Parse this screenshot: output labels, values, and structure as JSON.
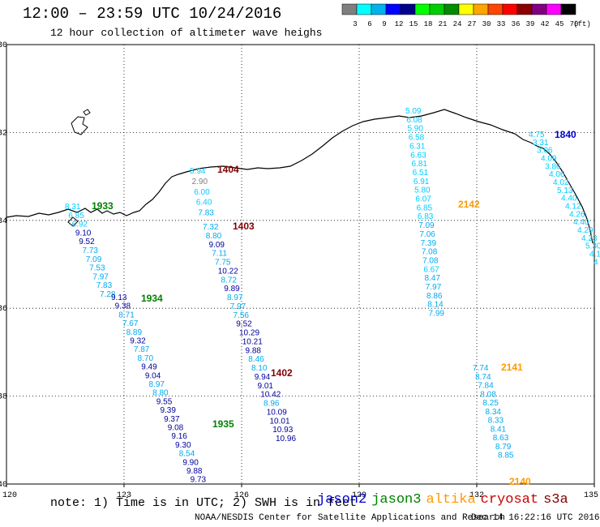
{
  "title": "12:00 – 23:59 UTC 10/24/2016",
  "subtitle": "12 hour collection of altimeter wave heighs",
  "colorbar": {
    "unit_label": "(ft)",
    "ticks": [
      "3",
      "6",
      "9",
      "12",
      "15",
      "18",
      "21",
      "24",
      "27",
      "30",
      "33",
      "36",
      "39",
      "42",
      "45",
      "70"
    ],
    "colors": [
      "#7f7f7f",
      "#00ffff",
      "#00b2ee",
      "#0000ff",
      "#00008b",
      "#00ff00",
      "#00cd00",
      "#008b00",
      "#ffff00",
      "#ffa500",
      "#ff4500",
      "#ff0000",
      "#8b0000",
      "#800080",
      "#ff00ff",
      "#000000"
    ]
  },
  "axes": {
    "x_labels": [
      "120",
      "123",
      "126",
      "129",
      "132",
      "135"
    ],
    "y_labels": [
      "-30",
      "-32",
      "-34",
      "-36",
      "-38",
      "-40"
    ]
  },
  "tracks": [
    {
      "label": "1933",
      "color": "#008000",
      "values": [
        {
          "t": "8.31",
          "c": "#00ccff"
        },
        {
          "t": "6.85",
          "c": "#00ccff"
        },
        {
          "t": "6.92",
          "c": "#00ccff"
        },
        {
          "t": "9.10",
          "c": "#000099"
        },
        {
          "t": "9.52",
          "c": "#000099"
        },
        {
          "t": "7.73",
          "c": "#00aaee"
        },
        {
          "t": "7.09",
          "c": "#00aaee"
        },
        {
          "t": "7.53",
          "c": "#00aaee"
        },
        {
          "t": "7.97",
          "c": "#00aaee"
        },
        {
          "t": "7.83",
          "c": "#00aaee"
        },
        {
          "t": "7.28",
          "c": "#00aaee"
        }
      ]
    },
    {
      "label": "1934",
      "color": "#008000",
      "values": [
        {
          "t": "9.13",
          "c": "#000099"
        },
        {
          "t": "9.38",
          "c": "#000099"
        },
        {
          "t": "8.71",
          "c": "#00aaee"
        },
        {
          "t": "7.67",
          "c": "#00aaee"
        },
        {
          "t": "8.89",
          "c": "#00aaee"
        },
        {
          "t": "9.32",
          "c": "#000099"
        },
        {
          "t": "7.87",
          "c": "#00aaee"
        },
        {
          "t": "8.70",
          "c": "#00aaee"
        },
        {
          "t": "9.49",
          "c": "#000099"
        },
        {
          "t": "9.04",
          "c": "#000099"
        },
        {
          "t": "8.97",
          "c": "#00aaee"
        },
        {
          "t": "8.80",
          "c": "#00aaee"
        },
        {
          "t": "9.55",
          "c": "#000099"
        },
        {
          "t": "9.39",
          "c": "#000099"
        },
        {
          "t": "9.37",
          "c": "#000099"
        },
        {
          "t": "9.08",
          "c": "#000099"
        },
        {
          "t": "9.16",
          "c": "#000099"
        },
        {
          "t": "9.30",
          "c": "#000099"
        },
        {
          "t": "8.54",
          "c": "#00aaee"
        },
        {
          "t": "9.90",
          "c": "#000099"
        },
        {
          "t": "9.88",
          "c": "#000099"
        },
        {
          "t": "9.73",
          "c": "#000099"
        }
      ]
    },
    {
      "label": "1935",
      "color": "#008000",
      "values": []
    },
    {
      "label": "1404",
      "color": "#800000",
      "values": [
        {
          "t": "5.94",
          "c": "#00ccff"
        },
        {
          "t": "2.90",
          "c": "#808080"
        },
        {
          "t": "6.00",
          "c": "#00ccff"
        },
        {
          "t": "6.40",
          "c": "#00ccff"
        },
        {
          "t": "7.83",
          "c": "#00aaee"
        }
      ]
    },
    {
      "label": "1403",
      "color": "#800000",
      "values": [
        {
          "t": "7.32",
          "c": "#00aaee"
        },
        {
          "t": "8.80",
          "c": "#00aaee"
        },
        {
          "t": "9.09",
          "c": "#000099"
        },
        {
          "t": "7.11",
          "c": "#00aaee"
        },
        {
          "t": "7.75",
          "c": "#00aaee"
        },
        {
          "t": "10.22",
          "c": "#000099"
        },
        {
          "t": "8.72",
          "c": "#00aaee"
        },
        {
          "t": "9.89",
          "c": "#000099"
        },
        {
          "t": "8.97",
          "c": "#00aaee"
        },
        {
          "t": "7.97",
          "c": "#00aaee"
        },
        {
          "t": "7.56",
          "c": "#00aaee"
        },
        {
          "t": "9.52",
          "c": "#000099"
        },
        {
          "t": "10.29",
          "c": "#000099"
        },
        {
          "t": "10.21",
          "c": "#000099"
        },
        {
          "t": "9.88",
          "c": "#000099"
        },
        {
          "t": "8.46",
          "c": "#00aaee"
        },
        {
          "t": "8.10",
          "c": "#00aaee"
        },
        {
          "t": "9.94",
          "c": "#000099"
        },
        {
          "t": "9.01",
          "c": "#000099"
        },
        {
          "t": "10.42",
          "c": "#000099"
        },
        {
          "t": "8.96",
          "c": "#00aaee"
        },
        {
          "t": "10.09",
          "c": "#000099"
        },
        {
          "t": "10.01",
          "c": "#000099"
        },
        {
          "t": "10.93",
          "c": "#000099"
        },
        {
          "t": "10.96",
          "c": "#000099"
        }
      ]
    },
    {
      "label": "1402",
      "color": "#800000",
      "values": []
    },
    {
      "label": "2142",
      "color": "#ff9900",
      "values": [
        {
          "t": "5.09",
          "c": "#00ccff"
        },
        {
          "t": "6.08",
          "c": "#00ccff"
        },
        {
          "t": "5.90",
          "c": "#00ccff"
        },
        {
          "t": "6.58",
          "c": "#00ccff"
        },
        {
          "t": "6.31",
          "c": "#00ccff"
        },
        {
          "t": "6.63",
          "c": "#00ccff"
        },
        {
          "t": "6.81",
          "c": "#00ccff"
        },
        {
          "t": "6.51",
          "c": "#00ccff"
        },
        {
          "t": "6.91",
          "c": "#00ccff"
        },
        {
          "t": "5.80",
          "c": "#00ccff"
        },
        {
          "t": "6.07",
          "c": "#00ccff"
        },
        {
          "t": "6.85",
          "c": "#00ccff"
        },
        {
          "t": "6.83",
          "c": "#00ccff"
        },
        {
          "t": "7.09",
          "c": "#00aaee"
        },
        {
          "t": "7.06",
          "c": "#00aaee"
        },
        {
          "t": "7.39",
          "c": "#00aaee"
        },
        {
          "t": "7.08",
          "c": "#00aaee"
        },
        {
          "t": "7.08",
          "c": "#00aaee"
        },
        {
          "t": "6.67",
          "c": "#00ccff"
        },
        {
          "t": "8.47",
          "c": "#00aaee"
        },
        {
          "t": "7.97",
          "c": "#00aaee"
        },
        {
          "t": "8.86",
          "c": "#00aaee"
        },
        {
          "t": "8.14",
          "c": "#00aaee"
        },
        {
          "t": "7.99",
          "c": "#00aaee"
        }
      ]
    },
    {
      "label": "2141",
      "color": "#ff9900",
      "values": [
        {
          "t": "7.74",
          "c": "#00aaee"
        },
        {
          "t": "8.74",
          "c": "#00aaee"
        },
        {
          "t": "7.84",
          "c": "#00aaee"
        },
        {
          "t": "8.08",
          "c": "#00aaee"
        },
        {
          "t": "8.25",
          "c": "#00aaee"
        },
        {
          "t": "8.34",
          "c": "#00aaee"
        },
        {
          "t": "8.33",
          "c": "#00aaee"
        },
        {
          "t": "8.41",
          "c": "#00aaee"
        },
        {
          "t": "8.63",
          "c": "#00aaee"
        },
        {
          "t": "8.79",
          "c": "#00aaee"
        },
        {
          "t": "8.85",
          "c": "#00aaee"
        }
      ]
    },
    {
      "label": "2140",
      "color": "#ff9900",
      "values": []
    },
    {
      "label": "1840",
      "color": "#0000cc",
      "values": [
        {
          "t": "4.75",
          "c": "#00ccff"
        },
        {
          "t": "3.31",
          "c": "#00ccff"
        },
        {
          "t": "3.06",
          "c": "#00ccff"
        },
        {
          "t": "4.09",
          "c": "#00ccff"
        },
        {
          "t": "3.86",
          "c": "#00ccff"
        },
        {
          "t": "4.06",
          "c": "#00ccff"
        },
        {
          "t": "4.02",
          "c": "#00ccff"
        },
        {
          "t": "5.13",
          "c": "#00ccff"
        },
        {
          "t": "4.40",
          "c": "#00ccff"
        },
        {
          "t": "4.12",
          "c": "#00ccff"
        },
        {
          "t": "4.26",
          "c": "#00ccff"
        },
        {
          "t": "4.40",
          "c": "#00ccff"
        },
        {
          "t": "4.29",
          "c": "#00ccff"
        },
        {
          "t": "4.23",
          "c": "#00ccff"
        },
        {
          "t": "5.30",
          "c": "#00ccff"
        },
        {
          "t": "4.1",
          "c": "#00ccff"
        },
        {
          "t": "4",
          "c": "#00ccff"
        }
      ]
    }
  ],
  "footer_note": "note: 1) Time is in UTC; 2) SWH is in feet",
  "satellites": [
    {
      "name": "jason2",
      "color": "#0000cc"
    },
    {
      "name": "jason3",
      "color": "#008000"
    },
    {
      "name": "altika",
      "color": "#ff9900"
    },
    {
      "name": "cryosat",
      "color": "#cc0000"
    },
    {
      "name": "s3a",
      "color": "#800000"
    }
  ],
  "credit": "NOAA/NESDIS Center for Satellite Applications and Research",
  "timestamp": "Dec 14 16:22:16 UTC 2016"
}
